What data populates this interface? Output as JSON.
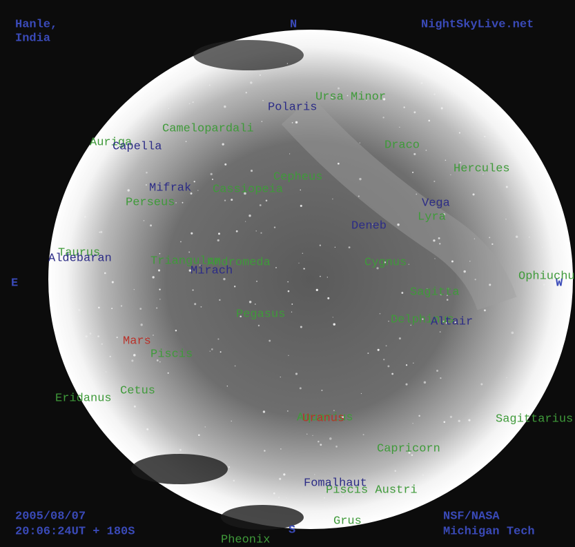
{
  "header": {
    "location": [
      "Hanle,",
      "India"
    ],
    "site": "NightSkyLive.net"
  },
  "footer": {
    "datetime": [
      "2005/08/07",
      "20:06:24UT + 180S"
    ],
    "credits": [
      "NSF/NASA",
      "Michigan Tech"
    ]
  },
  "compass": {
    "north": "N",
    "south": "S",
    "east": "E",
    "west": "W"
  },
  "constellations": [
    "Ursa Minor",
    "Camelopardali",
    "Auriga",
    "Draco",
    "Hercules",
    "Cepheus",
    "Cassiopeia",
    "Perseus",
    "Lyra",
    "Taurus",
    "Triangulum",
    "Andromeda",
    "Cygnus",
    "Ophiuchus",
    "Sagitta",
    "Delphinus",
    "Pegasus",
    "Piscis",
    "Cetus",
    "Eridanus",
    "Aquarius",
    "Sagittarius",
    "Capricorn",
    "Piscis Austri",
    "Grus",
    "Pheonix"
  ],
  "stars": [
    "Polaris",
    "Capella",
    "Mifrak",
    "Vega",
    "Deneb",
    "Aldebaran",
    "Mirach",
    "Altair",
    "Fomalhaut"
  ],
  "planets": [
    "Mars",
    "Uranus"
  ]
}
